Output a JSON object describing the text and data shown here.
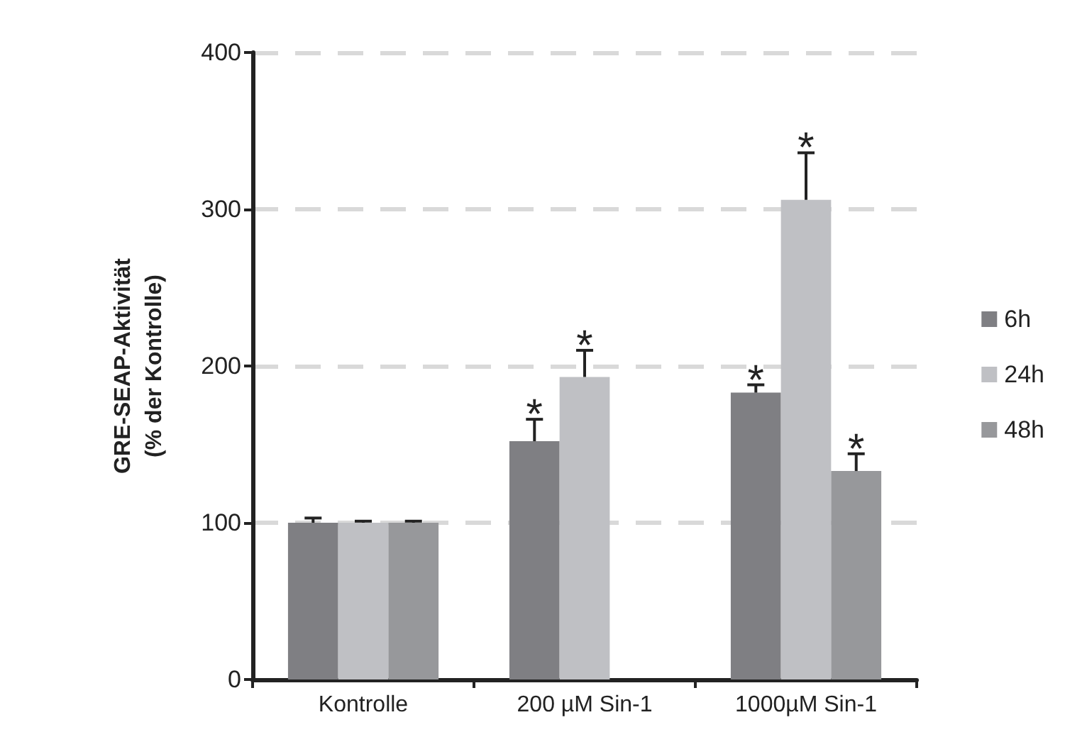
{
  "chart_data": {
    "type": "bar",
    "ylabel": "GRE-SEAP-Aktivität\n(% der Kontrolle)",
    "categories": [
      "Kontrolle",
      "200 µM Sin-1",
      "1000µM Sin-1"
    ],
    "series": [
      {
        "name": "6h",
        "color": "#7f7f83",
        "values": [
          100,
          152,
          183
        ],
        "errors": [
          3,
          14,
          5
        ],
        "value_labels": [
          null,
          "*",
          "*"
        ]
      },
      {
        "name": "24h",
        "color": "#bfc0c4",
        "values": [
          100,
          193,
          306
        ],
        "errors": [
          1,
          17,
          30
        ],
        "value_labels": [
          null,
          "*",
          "*"
        ]
      },
      {
        "name": "48h",
        "color": "#97989b",
        "values": [
          100,
          null,
          133
        ],
        "errors": [
          1,
          null,
          11
        ],
        "value_labels": [
          null,
          null,
          "*"
        ]
      }
    ],
    "ylim": [
      0,
      400
    ],
    "yticks": [
      0,
      100,
      200,
      300,
      400
    ],
    "grid": "y",
    "legend": "right"
  }
}
